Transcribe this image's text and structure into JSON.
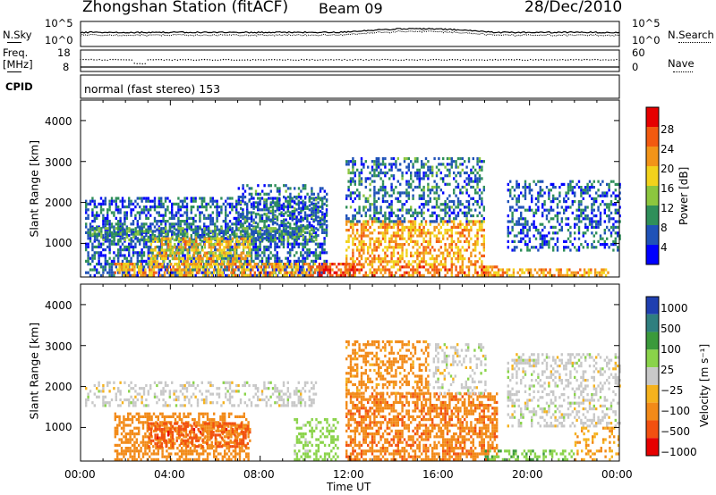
{
  "header": {
    "station": "Zhongshan Station (fitACF)",
    "beam": "Beam 09",
    "date": "28/Dec/2010"
  },
  "noise_panel": {
    "left_label": "N.Sky",
    "right_label": "N.Search",
    "left_ticks": [
      "10^5",
      "10^0"
    ],
    "right_ticks": [
      "10^5",
      "10^0"
    ]
  },
  "freq_panel": {
    "left_label_1": "Freq.",
    "left_label_2": "[MHz]",
    "right_label": "Nave",
    "left_ticks": [
      "18",
      "8"
    ],
    "right_ticks": [
      "60",
      "0"
    ]
  },
  "cpid": {
    "label": "CPID",
    "mode_text": "normal (fast stereo) 153"
  },
  "time_axis": {
    "label": "Time UT",
    "ticks": [
      "00:00",
      "04:00",
      "08:00",
      "12:00",
      "16:00",
      "20:00",
      "00:00"
    ]
  },
  "colors": {
    "power_scale": [
      "#0000ff",
      "#1f52b8",
      "#2f8f5a",
      "#8cc63e",
      "#f2d21b",
      "#f29418",
      "#f25a10",
      "#e60000"
    ],
    "velocity_scale": [
      "#1f3fb0",
      "#2f7f7f",
      "#3b9a3b",
      "#8ad34a",
      "#c8c8c8",
      "#f5b21d",
      "#f28a18",
      "#f25010",
      "#e60000"
    ]
  },
  "chart_data": [
    {
      "type": "heatmap",
      "name": "power",
      "ylabel": "Slant Range [km]",
      "xlabel": "Time UT",
      "xlim_hours": [
        0,
        24
      ],
      "ylim_km": [
        180,
        4500
      ],
      "yticks": [
        "1000",
        "2000",
        "3000",
        "4000"
      ],
      "colorbar": {
        "label": "Power [dB]",
        "ticks": [
          "4",
          "8",
          "12",
          "16",
          "20",
          "24",
          "28"
        ],
        "range": [
          0,
          30
        ]
      },
      "regions": [
        {
          "t0": 0.2,
          "t1": 11.0,
          "r0": 180,
          "r1": 2100,
          "level": 6,
          "density": 0.55
        },
        {
          "t0": 0.5,
          "t1": 10.5,
          "r0": 1050,
          "r1": 1350,
          "level": 9,
          "density": 0.6
        },
        {
          "t0": 3.0,
          "t1": 7.5,
          "r0": 450,
          "r1": 1100,
          "level": 18,
          "density": 0.6
        },
        {
          "t0": 1.5,
          "t1": 10.5,
          "r0": 180,
          "r1": 500,
          "level": 20,
          "density": 0.55
        },
        {
          "t0": 10.5,
          "t1": 12.2,
          "r0": 180,
          "r1": 500,
          "level": 26,
          "density": 0.7
        },
        {
          "t0": 11.8,
          "t1": 18.5,
          "r0": 180,
          "r1": 450,
          "level": 22,
          "density": 0.6
        },
        {
          "t0": 11.8,
          "t1": 18.0,
          "r0": 450,
          "r1": 1500,
          "level": 20,
          "density": 0.55
        },
        {
          "t0": 11.8,
          "t1": 18.0,
          "r0": 1500,
          "r1": 3100,
          "level": 7,
          "density": 0.4
        },
        {
          "t0": 18.0,
          "t1": 23.5,
          "r0": 180,
          "r1": 380,
          "level": 20,
          "density": 0.6
        },
        {
          "t0": 19.0,
          "t1": 24.0,
          "r0": 800,
          "r1": 2500,
          "level": 6,
          "density": 0.4
        },
        {
          "t0": 7.0,
          "t1": 11.0,
          "r0": 1400,
          "r1": 2400,
          "level": 7,
          "density": 0.3
        }
      ]
    },
    {
      "type": "heatmap",
      "name": "velocity",
      "ylabel": "Slant Range [km]",
      "xlabel": "Time UT",
      "xlim_hours": [
        0,
        24
      ],
      "ylim_km": [
        180,
        4500
      ],
      "yticks": [
        "1000",
        "2000",
        "3000",
        "4000"
      ],
      "colorbar": {
        "label": "Velocity [m s⁻¹]",
        "ticks": [
          "1000",
          "500",
          "100",
          "25",
          "−25",
          "−100",
          "−500",
          "−1000"
        ],
        "range": [
          -1200,
          1200
        ]
      },
      "regions": [
        {
          "t0": 0.2,
          "t1": 10.5,
          "r0": 1500,
          "r1": 2100,
          "level": 0,
          "density": 0.35
        },
        {
          "t0": 1.5,
          "t1": 7.5,
          "r0": 180,
          "r1": 1300,
          "level": -300,
          "density": 0.55
        },
        {
          "t0": 3.0,
          "t1": 7.5,
          "r0": 500,
          "r1": 1100,
          "level": -700,
          "density": 0.5
        },
        {
          "t0": 9.5,
          "t1": 11.5,
          "r0": 180,
          "r1": 1200,
          "level": 50,
          "density": 0.45
        },
        {
          "t0": 11.8,
          "t1": 18.5,
          "r0": 180,
          "r1": 1800,
          "level": -400,
          "density": 0.6
        },
        {
          "t0": 11.8,
          "t1": 15.5,
          "r0": 1800,
          "r1": 3100,
          "level": -150,
          "density": 0.45
        },
        {
          "t0": 15.5,
          "t1": 18.0,
          "r0": 1800,
          "r1": 3000,
          "level": 0,
          "density": 0.3
        },
        {
          "t0": 18.0,
          "t1": 22.0,
          "r0": 180,
          "r1": 450,
          "level": 80,
          "density": 0.5
        },
        {
          "t0": 19.0,
          "t1": 24.0,
          "r0": 1000,
          "r1": 2800,
          "level": 0,
          "density": 0.35
        },
        {
          "t0": 22.0,
          "t1": 24.0,
          "r0": 180,
          "r1": 1000,
          "level": -100,
          "density": 0.3
        }
      ]
    }
  ]
}
